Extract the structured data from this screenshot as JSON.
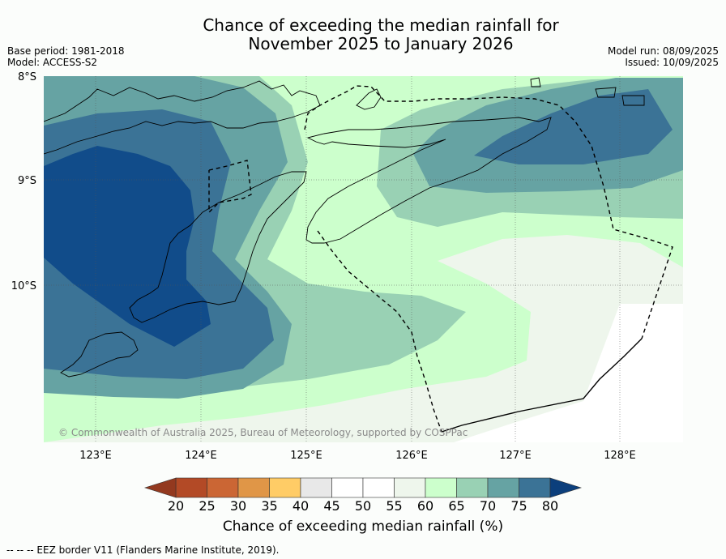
{
  "title_line1": "Chance of exceeding the median rainfall for",
  "title_line2": "November 2025 to January 2026",
  "meta_left": {
    "base_period": "Base period: 1981-2018",
    "model": "Model: ACCESS-S2"
  },
  "meta_right": {
    "model_run": "Model run: 08/09/2025",
    "issued": "Issued: 10/09/2025"
  },
  "latitudes": [
    "8°S",
    "9°S",
    "10°S"
  ],
  "longitudes": [
    "123°E",
    "124°E",
    "125°E",
    "126°E",
    "127°E",
    "128°E"
  ],
  "copyright": "© Commonwealth of Australia 2025, Bureau of Meteorology, supported by COSPPac",
  "colorbar": {
    "title": "Chance of exceeding median rainfall (%)",
    "ticks": [
      "20",
      "25",
      "30",
      "35",
      "40",
      "45",
      "50",
      "55",
      "60",
      "65",
      "70",
      "75",
      "80"
    ],
    "colors": [
      "#b34a26",
      "#cb6634",
      "#e09647",
      "#ffcc66",
      "#e8e8e8",
      "#ffffff",
      "#ffffff",
      "#eef6ec",
      "#ccffcc",
      "#99d1b4",
      "#66a3a3",
      "#3b7396",
      "#114c8a"
    ],
    "low_arrow_color": "#93391f",
    "high_arrow_color": "#0c3f7c"
  },
  "footnote": "-- -- -- EEZ border V11 (Flanders Marine Institute, 2019).",
  "contour_colors": {
    "c55": "#eef6ec",
    "c60": "#ccffcc",
    "c65": "#99d1b4",
    "c70": "#66a3a3",
    "c75": "#3b7396",
    "c80": "#114c8a"
  }
}
